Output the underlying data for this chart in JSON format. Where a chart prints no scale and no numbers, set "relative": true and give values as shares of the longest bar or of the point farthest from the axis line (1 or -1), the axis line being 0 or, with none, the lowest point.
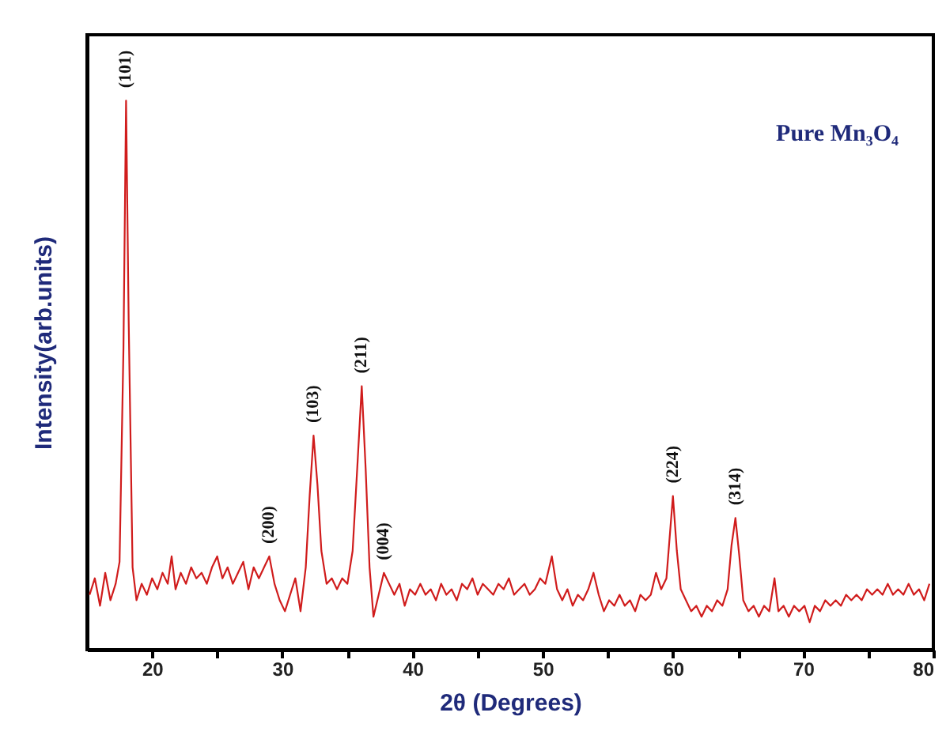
{
  "chart_data": {
    "type": "line",
    "relative": true,
    "xlabel": "2θ (Degrees)",
    "ylabel": "Intensity(arb.units)",
    "xlim": [
      15,
      80
    ],
    "xticks": [
      20,
      {
        "value": 25,
        "label": null
      },
      30,
      {
        "value": 35,
        "label": null
      },
      40,
      {
        "value": 45,
        "label": null
      },
      50,
      {
        "value": 55,
        "label": null
      },
      60,
      {
        "value": 65,
        "label": null
      },
      70,
      {
        "value": 75,
        "label": null
      },
      80
    ],
    "tick_labels": "x",
    "grid": false,
    "marker": "none",
    "line_style": "solid",
    "annotations": [
      "Pure Mn₃O₄",
      {
        "text": "(101)",
        "x": 18.0,
        "y": 1.0
      },
      {
        "text": "(200)",
        "x": 29.0,
        "y": 0.17
      },
      {
        "text": "(103)",
        "x": 32.4,
        "y": 0.39
      },
      {
        "text": "(211)",
        "x": 36.1,
        "y": 0.48
      },
      {
        "text": "(004)",
        "x": 37.8,
        "y": 0.14
      },
      {
        "text": "(224)",
        "x": 60.0,
        "y": 0.28
      },
      {
        "text": "(314)",
        "x": 64.8,
        "y": 0.24
      }
    ],
    "series": [
      {
        "color": "#d01c1c",
        "x": [
          15.2,
          15.6,
          16.0,
          16.4,
          16.8,
          17.2,
          17.5,
          17.8,
          18.0,
          18.2,
          18.5,
          18.8,
          19.2,
          19.6,
          20.0,
          20.4,
          20.8,
          21.2,
          21.5,
          21.8,
          22.2,
          22.6,
          23.0,
          23.4,
          23.8,
          24.2,
          24.6,
          25.0,
          25.4,
          25.8,
          26.2,
          26.6,
          27.0,
          27.4,
          27.8,
          28.2,
          28.6,
          29.0,
          29.4,
          29.8,
          30.2,
          30.6,
          31.0,
          31.4,
          31.8,
          32.1,
          32.4,
          32.7,
          33.0,
          33.4,
          33.8,
          34.2,
          34.6,
          35.0,
          35.4,
          35.8,
          36.1,
          36.4,
          36.7,
          37.0,
          37.4,
          37.8,
          38.2,
          38.6,
          39.0,
          39.4,
          39.8,
          40.2,
          40.6,
          41.0,
          41.4,
          41.8,
          42.2,
          42.6,
          43.0,
          43.4,
          43.8,
          44.2,
          44.6,
          45.0,
          45.4,
          45.8,
          46.2,
          46.6,
          47.0,
          47.4,
          47.8,
          48.2,
          48.6,
          49.0,
          49.4,
          49.8,
          50.2,
          50.7,
          51.1,
          51.5,
          51.9,
          52.3,
          52.7,
          53.1,
          53.5,
          53.9,
          54.3,
          54.7,
          55.1,
          55.5,
          55.9,
          56.3,
          56.7,
          57.1,
          57.5,
          57.9,
          58.3,
          58.7,
          59.1,
          59.5,
          59.8,
          60.0,
          60.3,
          60.6,
          61.0,
          61.4,
          61.8,
          62.2,
          62.6,
          63.0,
          63.4,
          63.8,
          64.2,
          64.5,
          64.8,
          65.1,
          65.4,
          65.8,
          66.2,
          66.6,
          67.0,
          67.4,
          67.8,
          68.1,
          68.5,
          68.9,
          69.3,
          69.7,
          70.1,
          70.5,
          70.9,
          71.3,
          71.7,
          72.1,
          72.5,
          72.9,
          73.3,
          73.7,
          74.1,
          74.5,
          74.9,
          75.3,
          75.7,
          76.1,
          76.5,
          76.9,
          77.3,
          77.7,
          78.1,
          78.5,
          78.9,
          79.3,
          79.7
        ],
        "values": [
          0.1,
          0.13,
          0.08,
          0.14,
          0.09,
          0.12,
          0.16,
          0.55,
          1.0,
          0.6,
          0.15,
          0.09,
          0.12,
          0.1,
          0.13,
          0.11,
          0.14,
          0.12,
          0.17,
          0.11,
          0.14,
          0.12,
          0.15,
          0.13,
          0.14,
          0.12,
          0.15,
          0.17,
          0.13,
          0.15,
          0.12,
          0.14,
          0.16,
          0.11,
          0.15,
          0.13,
          0.15,
          0.17,
          0.12,
          0.09,
          0.07,
          0.1,
          0.13,
          0.07,
          0.15,
          0.28,
          0.39,
          0.3,
          0.18,
          0.12,
          0.13,
          0.11,
          0.13,
          0.12,
          0.18,
          0.35,
          0.48,
          0.33,
          0.15,
          0.06,
          0.1,
          0.14,
          0.12,
          0.1,
          0.12,
          0.08,
          0.11,
          0.1,
          0.12,
          0.1,
          0.11,
          0.09,
          0.12,
          0.1,
          0.11,
          0.09,
          0.12,
          0.11,
          0.13,
          0.1,
          0.12,
          0.11,
          0.1,
          0.12,
          0.11,
          0.13,
          0.1,
          0.11,
          0.12,
          0.1,
          0.11,
          0.13,
          0.12,
          0.17,
          0.11,
          0.09,
          0.11,
          0.08,
          0.1,
          0.09,
          0.11,
          0.14,
          0.1,
          0.07,
          0.09,
          0.08,
          0.1,
          0.08,
          0.09,
          0.07,
          0.1,
          0.09,
          0.1,
          0.14,
          0.11,
          0.13,
          0.22,
          0.28,
          0.18,
          0.11,
          0.09,
          0.07,
          0.08,
          0.06,
          0.08,
          0.07,
          0.09,
          0.08,
          0.11,
          0.19,
          0.24,
          0.17,
          0.09,
          0.07,
          0.08,
          0.06,
          0.08,
          0.07,
          0.13,
          0.07,
          0.08,
          0.06,
          0.08,
          0.07,
          0.08,
          0.05,
          0.08,
          0.07,
          0.09,
          0.08,
          0.09,
          0.08,
          0.1,
          0.09,
          0.1,
          0.09,
          0.11,
          0.1,
          0.11,
          0.1,
          0.12,
          0.1,
          0.11,
          0.1,
          0.12,
          0.1,
          0.11,
          0.09,
          0.12
        ]
      }
    ]
  }
}
